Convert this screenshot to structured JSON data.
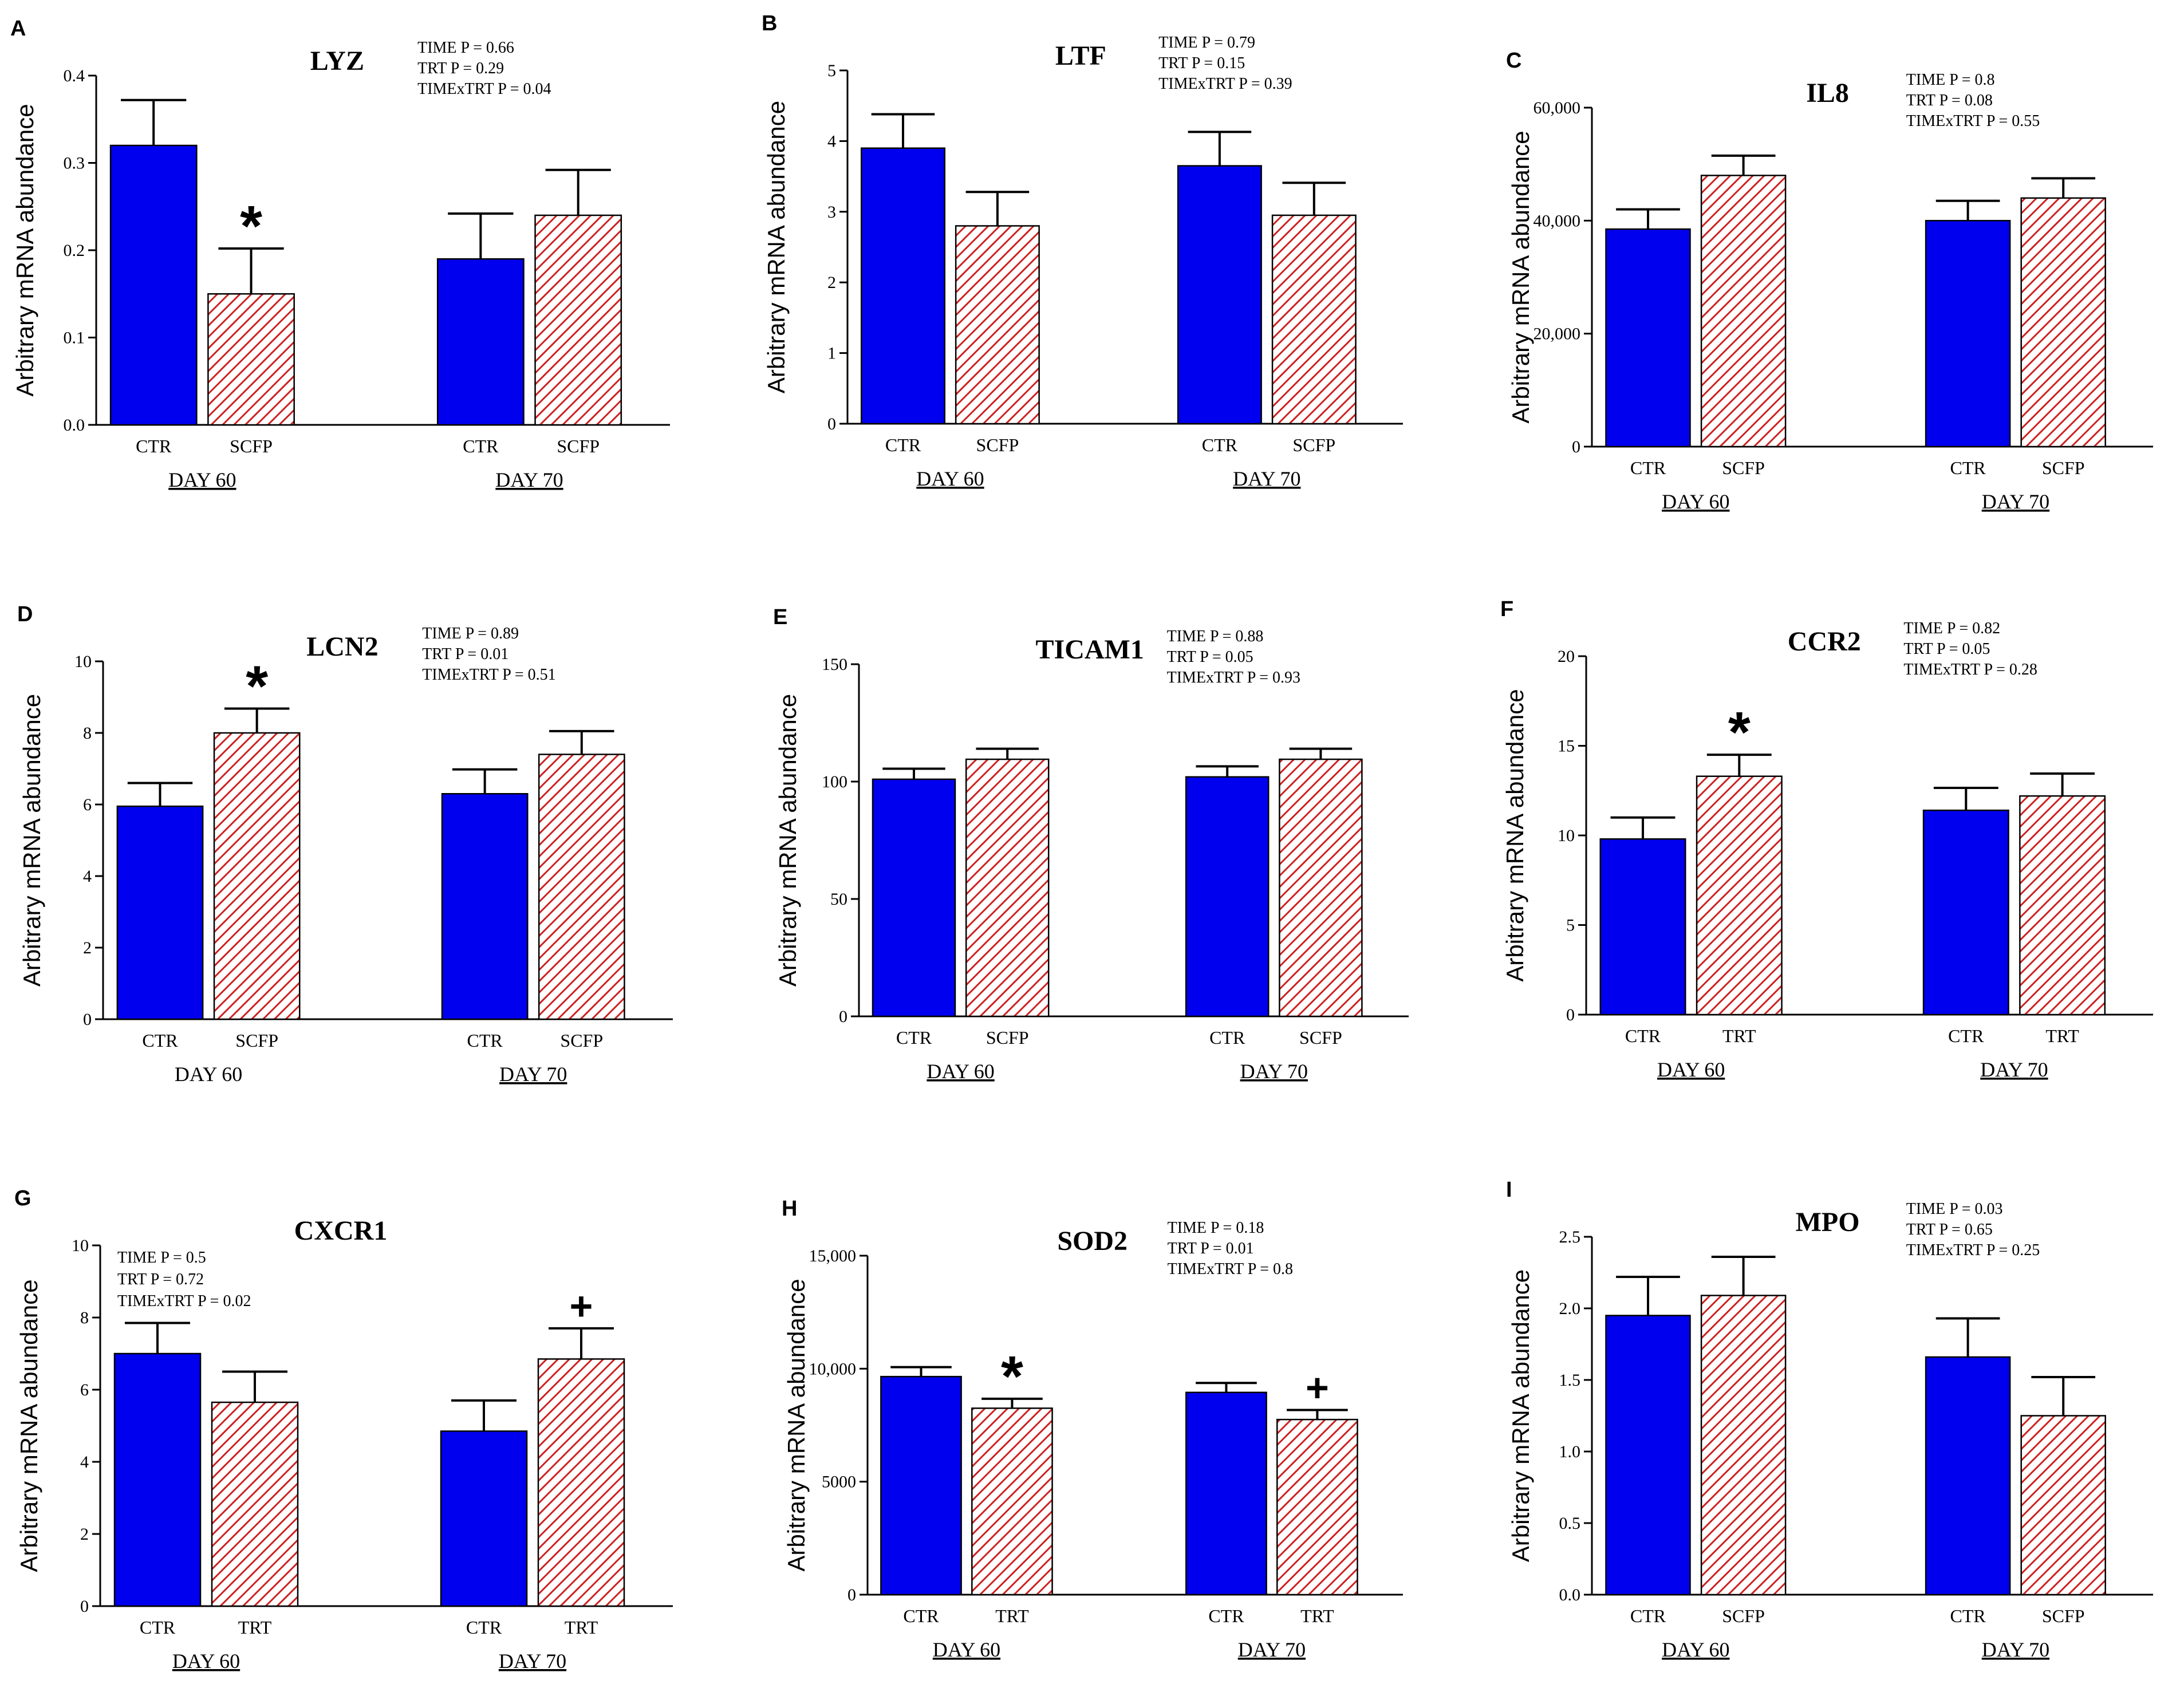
{
  "colors": {
    "ctr": "#0000ee",
    "scfp_stroke": "#cc2222",
    "scfp_fill": "#ffffff",
    "axis": "#000000"
  },
  "chart_data": [
    {
      "type": "bar",
      "panel": "A",
      "title": "LYZ",
      "ylabel": "Arbitrary mRNA abundance",
      "ylim": [
        0,
        0.4
      ],
      "yticks": [
        "0.0",
        "0.1",
        "0.2",
        "0.3",
        "0.4"
      ],
      "groups": [
        "DAY 60",
        "DAY 70"
      ],
      "groups_underlined": [
        true,
        true
      ],
      "categories": [
        "CTR",
        "SCFP",
        "CTR",
        "SCFP"
      ],
      "values": [
        0.32,
        0.15,
        0.19,
        0.24
      ],
      "errors": [
        0.052,
        0.052,
        0.052,
        0.052
      ],
      "marks": [
        "",
        "*",
        "",
        ""
      ],
      "stats": [
        "TIME P = 0.66",
        "TRT P = 0.29",
        "TIMExTRT P = 0.04"
      ]
    },
    {
      "type": "bar",
      "panel": "B",
      "title": "LTF",
      "ylabel": "Arbitrary mRNA abundance",
      "ylim": [
        0,
        5
      ],
      "yticks": [
        "0",
        "1",
        "2",
        "3",
        "4",
        "5"
      ],
      "groups": [
        "DAY 60",
        "DAY 70"
      ],
      "groups_underlined": [
        true,
        true
      ],
      "categories": [
        "CTR",
        "SCFP",
        "CTR",
        "SCFP"
      ],
      "values": [
        3.9,
        2.8,
        3.65,
        2.95
      ],
      "errors": [
        0.48,
        0.48,
        0.48,
        0.46
      ],
      "marks": [
        "",
        "",
        "",
        ""
      ],
      "stats": [
        "TIME P = 0.79",
        "TRT P = 0.15",
        "TIMExTRT P = 0.39"
      ]
    },
    {
      "type": "bar",
      "panel": "C",
      "title": "IL8",
      "ylabel": "Arbitrary mRNA abundance",
      "ylim": [
        0,
        60000
      ],
      "yticks": [
        "0",
        "20,000",
        "40,000",
        "60,000"
      ],
      "groups": [
        "DAY 60",
        "DAY 70"
      ],
      "groups_underlined": [
        true,
        true
      ],
      "categories": [
        "CTR",
        "SCFP",
        "CTR",
        "SCFP"
      ],
      "values": [
        38500,
        48000,
        40000,
        44000
      ],
      "errors": [
        3500,
        3500,
        3500,
        3500
      ],
      "marks": [
        "",
        "",
        "",
        ""
      ],
      "stats": [
        "TIME P = 0.8",
        "TRT P = 0.08",
        "TIMExTRT P = 0.55"
      ]
    },
    {
      "type": "bar",
      "panel": "D",
      "title": "LCN2",
      "ylabel": "Arbitrary mRNA abundance",
      "ylim": [
        0,
        10
      ],
      "yticks": [
        "0",
        "2",
        "4",
        "6",
        "8",
        "10"
      ],
      "groups": [
        "DAY 60",
        "DAY 70"
      ],
      "groups_underlined": [
        false,
        true
      ],
      "categories": [
        "CTR",
        "SCFP",
        "CTR",
        "SCFP"
      ],
      "values": [
        5.95,
        8.0,
        6.3,
        7.4
      ],
      "errors": [
        0.65,
        0.68,
        0.68,
        0.65
      ],
      "marks": [
        "",
        "*",
        "",
        ""
      ],
      "stats": [
        "TIME P = 0.89",
        "TRT P = 0.01",
        "TIMExTRT P = 0.51"
      ]
    },
    {
      "type": "bar",
      "panel": "E",
      "title": "TICAM1",
      "ylabel": "Arbitrary mRNA abundance",
      "ylim": [
        0,
        150
      ],
      "yticks": [
        "0",
        "50",
        "100",
        "150"
      ],
      "groups": [
        "DAY 60",
        "DAY 70"
      ],
      "groups_underlined": [
        true,
        true
      ],
      "categories": [
        "CTR",
        "SCFP",
        "CTR",
        "SCFP"
      ],
      "values": [
        101,
        109.5,
        102,
        109.5
      ],
      "errors": [
        4.5,
        4.5,
        4.5,
        4.5
      ],
      "marks": [
        "",
        "",
        "",
        ""
      ],
      "stats": [
        "TIME P = 0.88",
        "TRT P = 0.05",
        "TIMExTRT P = 0.93"
      ]
    },
    {
      "type": "bar",
      "panel": "F",
      "title": "CCR2",
      "ylabel": "Arbitrary mRNA abundance",
      "ylim": [
        0,
        20
      ],
      "yticks": [
        "0",
        "5",
        "10",
        "15",
        "20"
      ],
      "groups": [
        "DAY 60",
        "DAY 70"
      ],
      "groups_underlined": [
        true,
        true
      ],
      "categories": [
        "CTR",
        "TRT",
        "CTR",
        "TRT"
      ],
      "values": [
        9.8,
        13.3,
        11.4,
        12.2
      ],
      "errors": [
        1.2,
        1.2,
        1.25,
        1.25
      ],
      "marks": [
        "",
        "*",
        "",
        ""
      ],
      "stats": [
        "TIME P = 0.82",
        "TRT P = 0.05",
        "TIMExTRT P = 0.28"
      ]
    },
    {
      "type": "bar",
      "panel": "G",
      "title": "CXCR1",
      "ylabel": "Arbitrary mRNA abundance",
      "ylim": [
        0,
        10
      ],
      "yticks": [
        "0",
        "2",
        "4",
        "6",
        "8",
        "10"
      ],
      "groups": [
        "DAY 60",
        "DAY 70"
      ],
      "groups_underlined": [
        true,
        true
      ],
      "categories": [
        "CTR",
        "TRT",
        "CTR",
        "TRT"
      ],
      "values": [
        7.0,
        5.65,
        4.85,
        6.85
      ],
      "errors": [
        0.85,
        0.85,
        0.85,
        0.85
      ],
      "marks": [
        "",
        "",
        "",
        "+"
      ],
      "stats": [
        "TIME P = 0.5",
        "TRT P = 0.72",
        "TIMExTRT P = 0.02"
      ]
    },
    {
      "type": "bar",
      "panel": "H",
      "title": "SOD2",
      "ylabel": "Arbitrary mRNA abundance",
      "ylim": [
        0,
        15000
      ],
      "yticks": [
        "0",
        "5000",
        "10,000",
        "15,000"
      ],
      "groups": [
        "DAY 60",
        "DAY 70"
      ],
      "groups_underlined": [
        true,
        true
      ],
      "categories": [
        "CTR",
        "TRT",
        "CTR",
        "TRT"
      ],
      "values": [
        9650,
        8250,
        8950,
        7750
      ],
      "errors": [
        420,
        420,
        420,
        420
      ],
      "marks": [
        "",
        "*",
        "",
        "+"
      ],
      "stats": [
        "TIME P = 0.18",
        "TRT P = 0.01",
        "TIMExTRT P = 0.8"
      ]
    },
    {
      "type": "bar",
      "panel": "I",
      "title": "MPO",
      "ylabel": "Arbitrary mRNA abundance",
      "ylim": [
        0,
        2.5
      ],
      "yticks": [
        "0.0",
        "0.5",
        "1.0",
        "1.5",
        "2.0",
        "2.5"
      ],
      "groups": [
        "DAY 60",
        "DAY 70"
      ],
      "groups_underlined": [
        true,
        true
      ],
      "categories": [
        "CTR",
        "SCFP",
        "CTR",
        "SCFP"
      ],
      "values": [
        1.95,
        2.09,
        1.66,
        1.25
      ],
      "errors": [
        0.27,
        0.27,
        0.27,
        0.27
      ],
      "marks": [
        "",
        "",
        "",
        ""
      ],
      "stats": [
        "TIME P = 0.03",
        "TRT P = 0.65",
        "TIMExTRT P = 0.25"
      ]
    }
  ]
}
